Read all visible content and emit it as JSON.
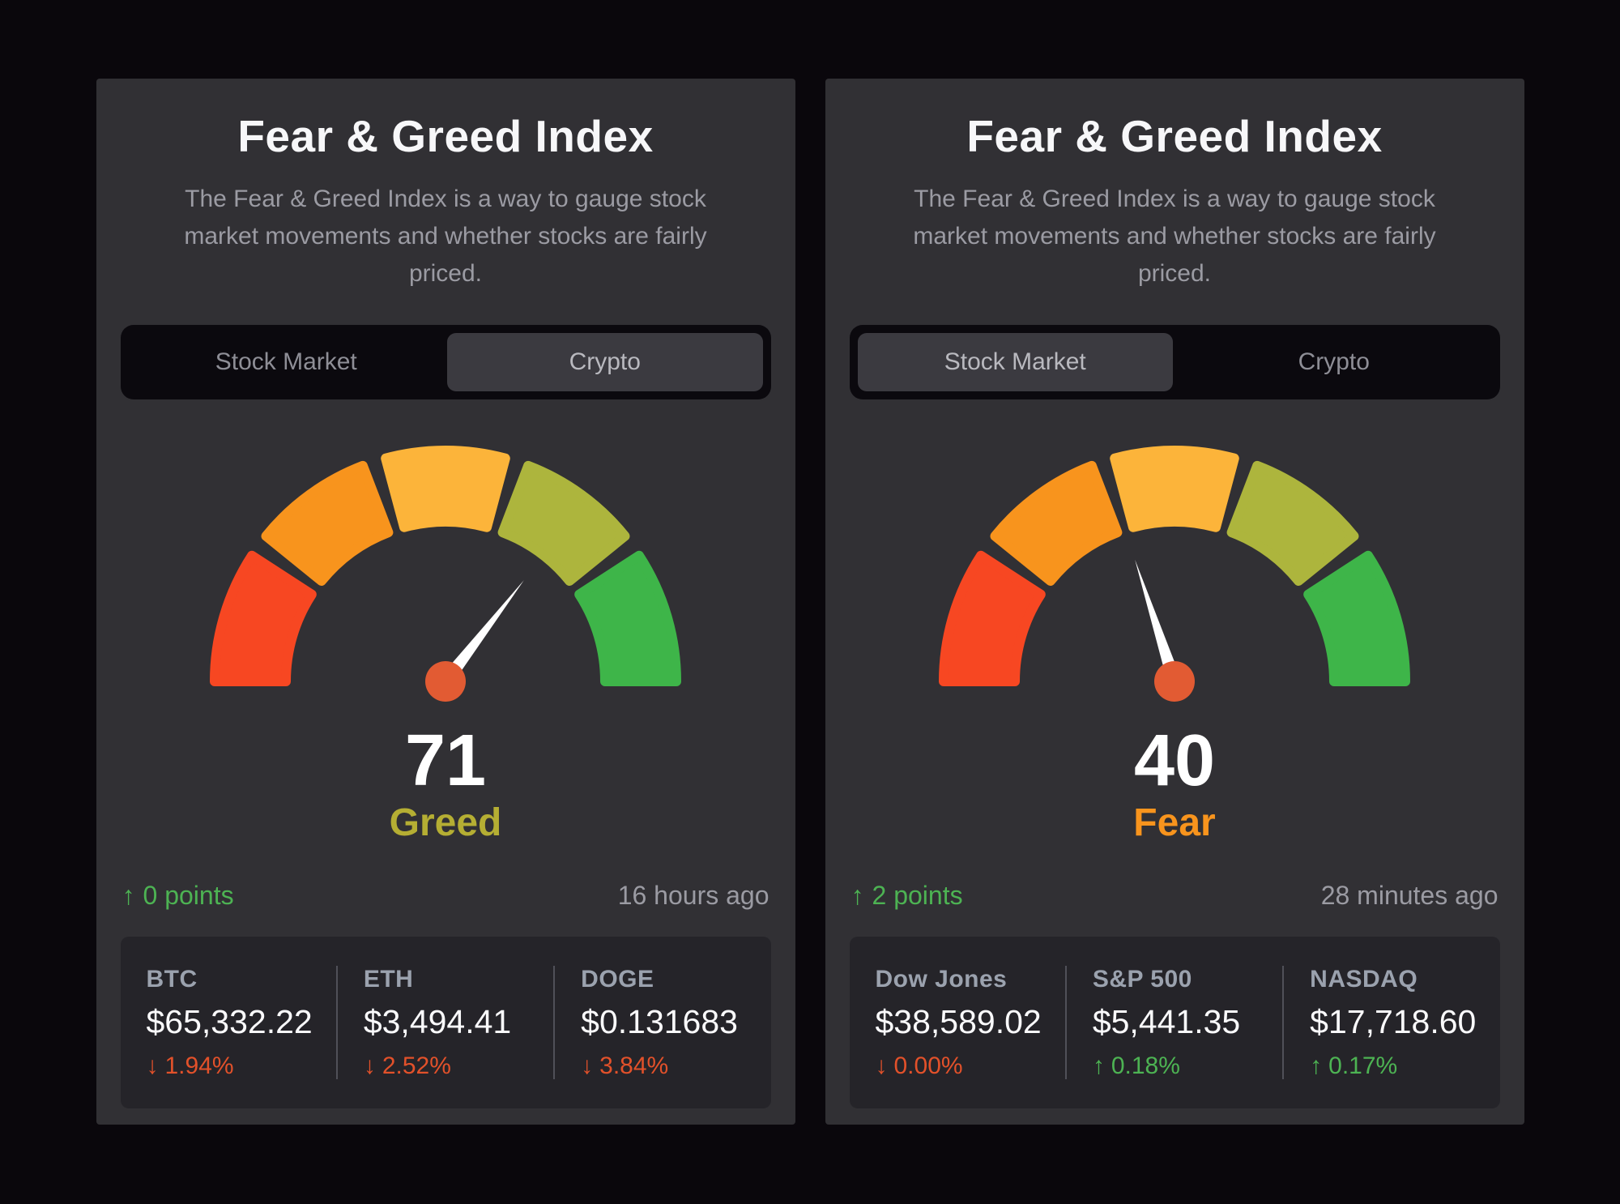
{
  "colors": {
    "page_background": "#0a070c",
    "card_background": "#313034",
    "positive_green": "#4db353",
    "negative_red": "#e2512a",
    "gauge_segments": [
      "#f74722",
      "#f8941d",
      "#fcb43a",
      "#adb53d",
      "#3eb549"
    ],
    "needle_hub": "#e25b33",
    "greed_label": "#b5ae33",
    "fear_label": "#f8941d"
  },
  "chart_data": [
    {
      "type": "gauge",
      "title": "Fear & Greed Index",
      "selected_market": "Crypto",
      "value": 71,
      "range": [
        0,
        100
      ],
      "sentiment": "Greed",
      "segments": [
        "extreme fear (red)",
        "fear (orange)",
        "neutral (yellow)",
        "greed (yellow-green)",
        "extreme greed (green)"
      ],
      "change_points": 0,
      "last_updated": "16 hours ago"
    },
    {
      "type": "gauge",
      "title": "Fear & Greed Index",
      "selected_market": "Stock Market",
      "value": 40,
      "range": [
        0,
        100
      ],
      "sentiment": "Fear",
      "segments": [
        "extreme fear (red)",
        "fear (orange)",
        "neutral (yellow)",
        "greed (yellow-green)",
        "extreme greed (green)"
      ],
      "change_points": 2,
      "last_updated": "28 minutes ago"
    }
  ],
  "cards": [
    {
      "title": "Fear & Greed Index",
      "description": "The Fear & Greed Index is a way to gauge stock market movements and whether stocks are fairly priced.",
      "tabs": [
        {
          "label": "Stock Market",
          "selected": false
        },
        {
          "label": "Crypto",
          "selected": true
        }
      ],
      "gauge": {
        "value": 71,
        "label": "Greed",
        "label_color": "#b5ae33"
      },
      "change": {
        "arrow": "↑",
        "text": "0 points"
      },
      "updated": "16 hours ago",
      "tickers": [
        {
          "symbol": "BTC",
          "price": "$65,332.22",
          "arrow": "↓",
          "change": "1.94%",
          "direction": "down"
        },
        {
          "symbol": "ETH",
          "price": "$3,494.41",
          "arrow": "↓",
          "change": "2.52%",
          "direction": "down"
        },
        {
          "symbol": "DOGE",
          "price": "$0.131683",
          "arrow": "↓",
          "change": "3.84%",
          "direction": "down"
        }
      ]
    },
    {
      "title": "Fear & Greed Index",
      "description": "The Fear & Greed Index is a way to gauge stock market movements and whether stocks are fairly priced.",
      "tabs": [
        {
          "label": "Stock Market",
          "selected": true
        },
        {
          "label": "Crypto",
          "selected": false
        }
      ],
      "gauge": {
        "value": 40,
        "label": "Fear",
        "label_color": "#f8941d"
      },
      "change": {
        "arrow": "↑",
        "text": "2 points"
      },
      "updated": "28 minutes ago",
      "tickers": [
        {
          "symbol": "Dow Jones",
          "price": "$38,589.02",
          "arrow": "↓",
          "change": "0.00%",
          "direction": "down"
        },
        {
          "symbol": "S&P 500",
          "price": "$5,441.35",
          "arrow": "↑",
          "change": "0.18%",
          "direction": "up"
        },
        {
          "symbol": "NASDAQ",
          "price": "$17,718.60",
          "arrow": "↑",
          "change": "0.17%",
          "direction": "up"
        }
      ]
    }
  ]
}
